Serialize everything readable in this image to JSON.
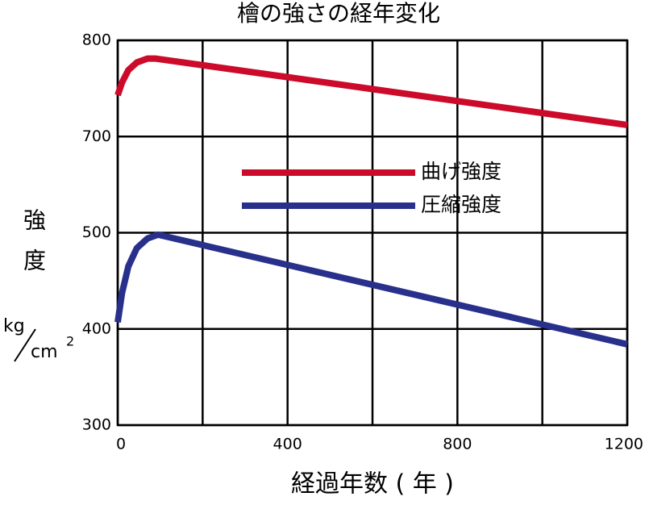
{
  "chart_data": {
    "type": "line",
    "title": "檜の強さの経年変化",
    "x_label": "経過年数 ( 年 )",
    "y_label": "強度",
    "y_unit": {
      "numerator": "kg",
      "denominator": "cm",
      "exponent": "2"
    },
    "xlim": [
      0,
      1200
    ],
    "xticks": [
      0,
      400,
      800,
      1200
    ],
    "xgrid": [
      0,
      200,
      400,
      600,
      800,
      1000,
      1200
    ],
    "ylim": [
      300,
      800
    ],
    "yticks": [
      300,
      400,
      500,
      700,
      800
    ],
    "y_axis_break": [
      500,
      700
    ],
    "grid": true,
    "legend": "upper center",
    "series": [
      {
        "name": "曲げ強度",
        "color": "#cc0a2a",
        "x": [
          0,
          10,
          25,
          45,
          70,
          90,
          1200
        ],
        "values": [
          743,
          756,
          769,
          777,
          781,
          781,
          712
        ]
      },
      {
        "name": "圧縮強度",
        "color": "#28308c",
        "x": [
          0,
          10,
          25,
          45,
          70,
          95,
          1200
        ],
        "values": [
          407,
          437,
          465,
          484,
          494,
          498,
          384
        ]
      }
    ]
  }
}
